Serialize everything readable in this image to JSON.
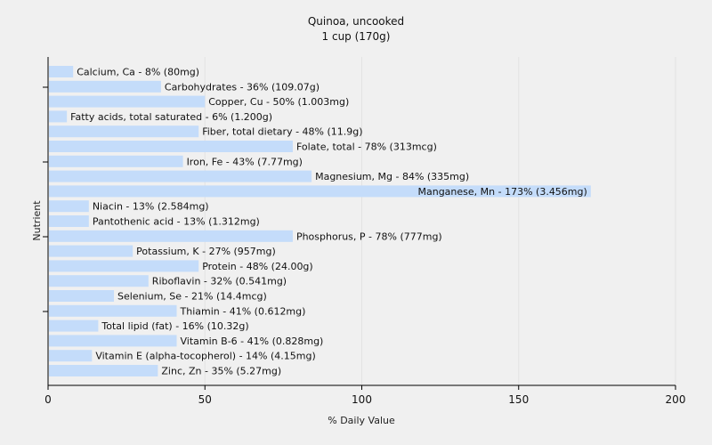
{
  "chart_data": {
    "type": "bar",
    "orientation": "horizontal",
    "title": "Quinoa, uncooked",
    "subtitle": "1 cup (170g)",
    "xlabel": "% Daily Value",
    "ylabel": "Nutrient",
    "xlim": [
      0,
      200
    ],
    "x_ticks": [
      0,
      50,
      100,
      150,
      200
    ],
    "grid": "vertical",
    "bar_color": "#c4dcfa",
    "background": "#f0f0f0",
    "categories": [
      "Calcium, Ca",
      "Carbohydrates",
      "Copper, Cu",
      "Fatty acids, total saturated",
      "Fiber, total dietary",
      "Folate, total",
      "Iron, Fe",
      "Magnesium, Mg",
      "Manganese, Mn",
      "Niacin",
      "Pantothenic acid",
      "Phosphorus, P",
      "Potassium, K",
      "Protein",
      "Riboflavin",
      "Selenium, Se",
      "Thiamin",
      "Total lipid (fat)",
      "Vitamin B-6",
      "Vitamin E (alpha-tocopherol)",
      "Zinc, Zn"
    ],
    "values": [
      8,
      36,
      50,
      6,
      48,
      78,
      43,
      84,
      173,
      13,
      13,
      78,
      27,
      48,
      32,
      21,
      41,
      16,
      41,
      14,
      35
    ],
    "labels": [
      "Calcium, Ca - 8% (80mg)",
      "Carbohydrates - 36% (109.07g)",
      "Copper, Cu - 50% (1.003mg)",
      "Fatty acids, total saturated - 6% (1.200g)",
      "Fiber, total dietary - 48% (11.9g)",
      "Folate, total - 78% (313mcg)",
      "Iron, Fe - 43% (7.77mg)",
      "Magnesium, Mg - 84% (335mg)",
      "Manganese, Mn - 173% (3.456mg)",
      "Niacin - 13% (2.584mg)",
      "Pantothenic acid - 13% (1.312mg)",
      "Phosphorus, P - 78% (777mg)",
      "Potassium, K - 27% (957mg)",
      "Protein - 48% (24.00g)",
      "Riboflavin - 32% (0.541mg)",
      "Selenium, Se - 21% (14.4mcg)",
      "Thiamin - 41% (0.612mg)",
      "Total lipid (fat) - 16% (10.32g)",
      "Vitamin B-6 - 41% (0.828mg)",
      "Vitamin E (alpha-tocopherol) - 14% (4.15mg)",
      "Zinc, Zn - 35% (5.27mg)"
    ]
  }
}
